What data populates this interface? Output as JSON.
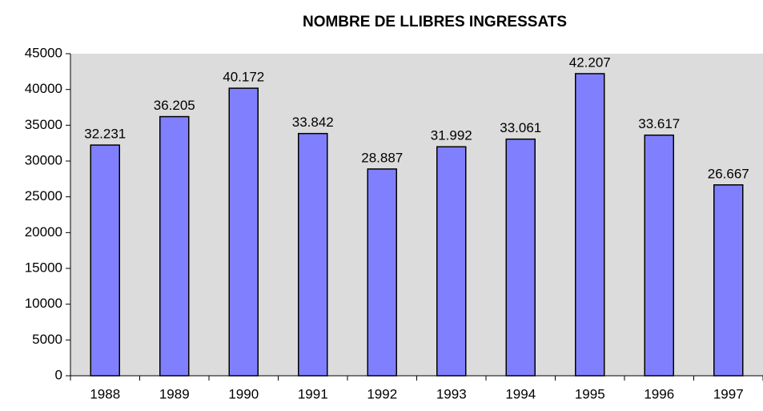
{
  "chart_data": {
    "type": "bar",
    "title": "NOMBRE DE LLIBRES INGRESSATS",
    "categories": [
      "1988",
      "1989",
      "1990",
      "1991",
      "1992",
      "1993",
      "1994",
      "1995",
      "1996",
      "1997"
    ],
    "values": [
      32231,
      36205,
      40172,
      33842,
      28887,
      31992,
      33061,
      42207,
      33617,
      26667
    ],
    "value_labels": [
      "32.231",
      "36.205",
      "40.172",
      "33.842",
      "28.887",
      "31.992",
      "33.061",
      "42.207",
      "33.617",
      "26.667"
    ],
    "color": "#8080ff",
    "ylim": [
      0,
      45000
    ],
    "yticks": [
      0,
      5000,
      10000,
      15000,
      20000,
      25000,
      30000,
      35000,
      40000,
      45000
    ],
    "grid": false
  }
}
